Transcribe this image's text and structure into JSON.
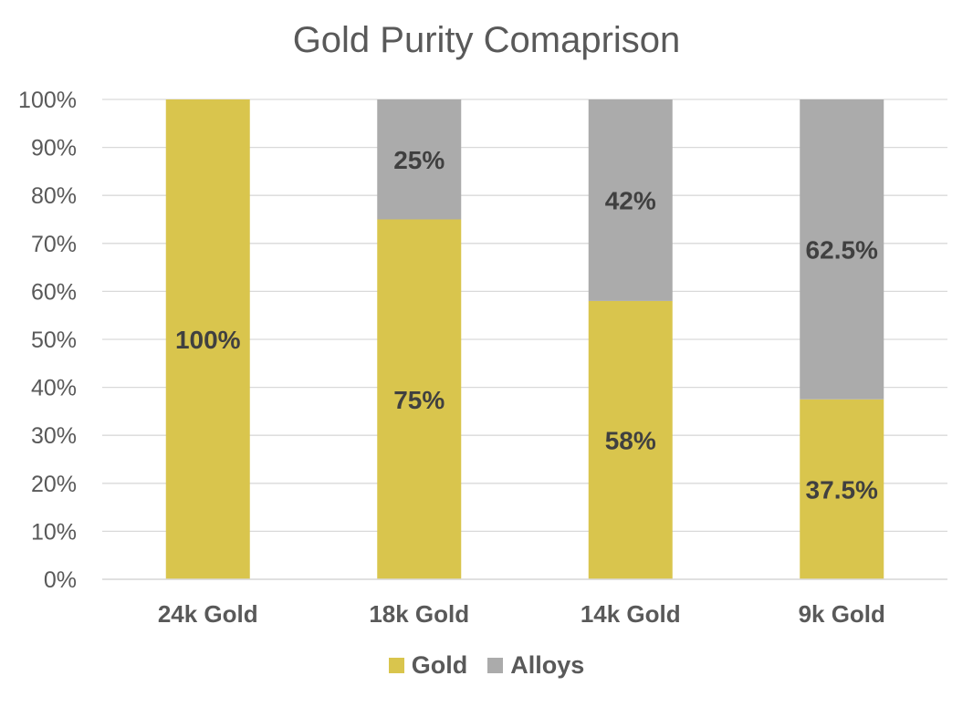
{
  "chart_data": {
    "type": "bar",
    "stacked": true,
    "title": "Gold Purity Comaprison",
    "xlabel": "",
    "ylabel": "",
    "categories": [
      "24k Gold",
      "18k Gold",
      "14k Gold",
      "9k Gold"
    ],
    "series": [
      {
        "name": "Gold",
        "color": "#D9C54D",
        "values": [
          100,
          75,
          58,
          37.5
        ],
        "labels": [
          "100%",
          "75%",
          "58%",
          "37.5%"
        ]
      },
      {
        "name": "Alloys",
        "color": "#ABABAB",
        "values": [
          0,
          25,
          42,
          62.5
        ],
        "labels": [
          "",
          "25%",
          "42%",
          "62.5%"
        ]
      }
    ],
    "ylim": [
      0,
      100
    ],
    "yticks": [
      "0%",
      "10%",
      "20%",
      "30%",
      "40%",
      "50%",
      "60%",
      "70%",
      "80%",
      "90%",
      "100%"
    ],
    "grid": true,
    "legend": "bottom"
  }
}
